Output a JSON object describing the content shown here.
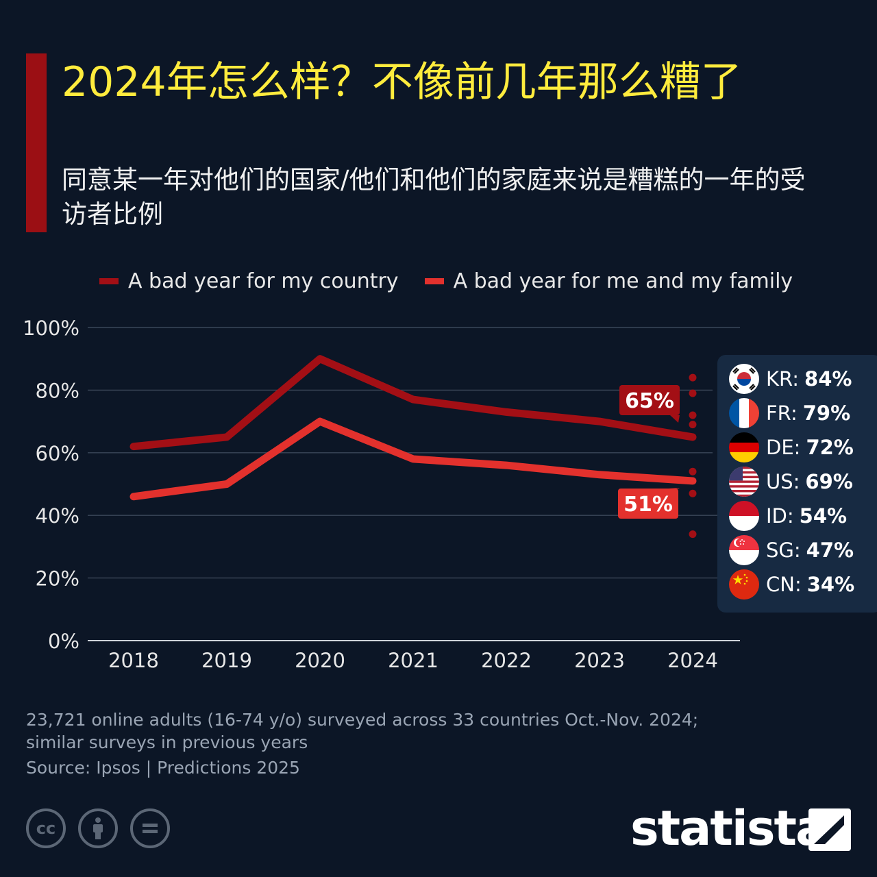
{
  "header": {
    "title": "2024年怎么样？不像前几年那么糟了",
    "subtitle": "同意某一年对他们的国家/他们和他们的家庭来说是糟糕的一年的受访者比例"
  },
  "colors": {
    "background": "#0c1626",
    "title": "#ffec3d",
    "accent_bar": "#9b0f14",
    "country_series": "#a30f15",
    "family_series": "#e3312d",
    "panel": "#172a42"
  },
  "chart_data": {
    "type": "line",
    "x": [
      "2018",
      "2019",
      "2020",
      "2021",
      "2022",
      "2023",
      "2024"
    ],
    "ylim": [
      0,
      100
    ],
    "yticks": [
      "0%",
      "20%",
      "40%",
      "60%",
      "80%",
      "100%"
    ],
    "grid": true,
    "legend_position": "top",
    "series": [
      {
        "name": "A bad year for my country",
        "color": "#a30f15",
        "values": [
          62,
          65,
          90,
          77,
          73,
          70,
          65
        ]
      },
      {
        "name": "A bad year for me and my family",
        "color": "#e3312d",
        "values": [
          46,
          50,
          70,
          58,
          56,
          53,
          51
        ]
      }
    ],
    "end_labels": [
      "65%",
      "51%"
    ],
    "country_points_2024": [
      84,
      79,
      72,
      69,
      54,
      47,
      34
    ]
  },
  "countries": [
    {
      "code": "KR",
      "label": "KR:",
      "value": "84%",
      "flag": "kr-flag-icon"
    },
    {
      "code": "FR",
      "label": "FR:",
      "value": "79%",
      "flag": "fr-flag-icon"
    },
    {
      "code": "DE",
      "label": "DE:",
      "value": "72%",
      "flag": "de-flag-icon"
    },
    {
      "code": "US",
      "label": "US:",
      "value": "69%",
      "flag": "us-flag-icon"
    },
    {
      "code": "ID",
      "label": "ID:",
      "value": "54%",
      "flag": "id-flag-icon"
    },
    {
      "code": "SG",
      "label": "SG:",
      "value": "47%",
      "flag": "sg-flag-icon"
    },
    {
      "code": "CN",
      "label": "CN:",
      "value": "34%",
      "flag": "cn-flag-icon"
    }
  ],
  "footer": {
    "note": "23,721 online adults (16-74 y/o) surveyed across 33 countries Oct.-Nov. 2024; similar surveys in previous years",
    "source": "Source: Ipsos | Predictions 2025",
    "cc_icons": [
      "cc-icon",
      "attribution-icon",
      "no-derivatives-icon"
    ],
    "brand": "statista"
  }
}
